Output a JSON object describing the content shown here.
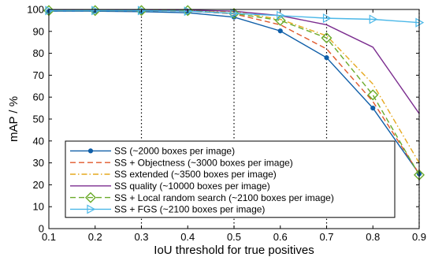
{
  "chart_data": {
    "type": "line",
    "title": "",
    "xlabel": "IoU threshold for true positives",
    "ylabel": "mAP / %",
    "xlim": [
      0.1,
      0.9
    ],
    "ylim": [
      0,
      100
    ],
    "x_ticks": [
      "0.1",
      "0.2",
      "0.3",
      "0.4",
      "0.5",
      "0.6",
      "0.7",
      "0.8",
      "0.9"
    ],
    "y_ticks": [
      "0",
      "10",
      "20",
      "30",
      "40",
      "50",
      "60",
      "70",
      "80",
      "90",
      "100"
    ],
    "grid": "vertical dotted at 0.3, 0.5, 0.7, 0.9",
    "legend_position": "bottom-left",
    "x": [
      0.1,
      0.2,
      0.3,
      0.4,
      0.5,
      0.6,
      0.7,
      0.8,
      0.9
    ],
    "series": [
      {
        "name": "SS (~2000 boxes per image)",
        "color": "#0f5ea8",
        "style": "solid",
        "marker": "dot",
        "values": [
          99.2,
          99.2,
          99.0,
          98.5,
          96.5,
          90.2,
          78.0,
          55.0,
          25.0
        ]
      },
      {
        "name": "SS + Objectness  (~3000 boxes per image)",
        "color": "#e0572a",
        "style": "dashed",
        "marker": "none",
        "values": [
          99.5,
          99.5,
          99.4,
          99.2,
          98.0,
          93.0,
          82.0,
          58.0,
          25.0
        ]
      },
      {
        "name": "SS extended (~3500 boxes per image)",
        "color": "#e6a81e",
        "style": "dashdot",
        "marker": "none",
        "values": [
          99.8,
          99.8,
          99.6,
          99.5,
          99.0,
          95.5,
          88.0,
          66.0,
          30.0
        ]
      },
      {
        "name": "SS quality (~10000 boxes per image)",
        "color": "#7b2d8f",
        "style": "solid",
        "marker": "none",
        "values": [
          99.8,
          99.8,
          99.8,
          99.7,
          99.2,
          97.2,
          93.0,
          82.8,
          52.5
        ]
      },
      {
        "name": "SS + Local random search (~2100 boxes per image)",
        "color": "#6aaa2a",
        "style": "dashed",
        "marker": "diamond",
        "values": [
          99.5,
          99.5,
          99.5,
          99.5,
          98.2,
          95.0,
          87.0,
          61.0,
          24.5
        ]
      },
      {
        "name": "SS + FGS (~2100 boxes per image)",
        "color": "#4cb8e8",
        "style": "solid",
        "marker": "triangle",
        "values": [
          99.5,
          99.5,
          99.5,
          99.2,
          98.2,
          97.2,
          96.0,
          95.5,
          94.0
        ]
      }
    ]
  }
}
